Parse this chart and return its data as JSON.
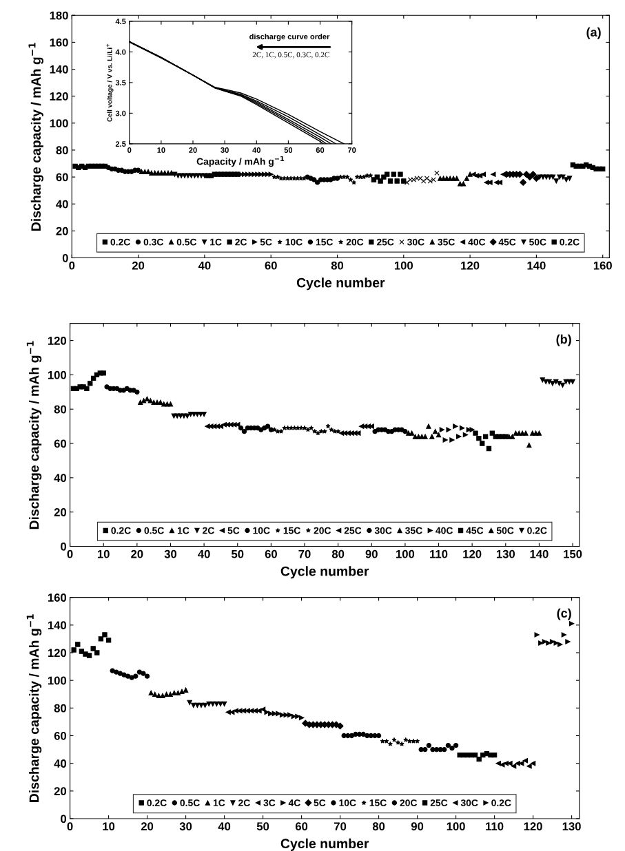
{
  "chart_data": [
    {
      "type": "scatter",
      "xlabel": "Cycle number",
      "ylabel": "Discharge capacity / mAh g$^{−1}$",
      "annotations": [
        "(a)"
      ],
      "xlim": [
        0,
        162
      ],
      "ylim": [
        0,
        180
      ],
      "xticks": [
        0,
        20,
        40,
        60,
        80,
        100,
        120,
        140,
        160
      ],
      "yticks": [
        0,
        20,
        40,
        60,
        80,
        100,
        120,
        140,
        160,
        180
      ],
      "legend": "bottom",
      "grid": false,
      "series": [
        {
          "name": "0.2C",
          "color": "#000000",
          "marker": "square",
          "x": [
            1,
            2,
            3,
            4,
            5,
            6,
            7,
            8,
            9,
            10
          ],
          "values": [
            68,
            67,
            68,
            67,
            68,
            68,
            68,
            68,
            68,
            68
          ]
        },
        {
          "name": "0.3C",
          "color": "#000000",
          "marker": "circle",
          "x": [
            11,
            12,
            13,
            14,
            15,
            16,
            17,
            18,
            19,
            20
          ],
          "values": [
            67,
            66,
            66,
            65,
            65,
            64,
            64,
            64,
            65,
            65
          ]
        },
        {
          "name": "0.5C",
          "color": "#000000",
          "marker": "triangle",
          "x": [
            21,
            22,
            23,
            24,
            25,
            26,
            27,
            28,
            29,
            30
          ],
          "values": [
            64,
            64,
            64,
            63,
            63,
            63,
            63,
            63,
            63,
            63
          ]
        },
        {
          "name": "1C",
          "color": "#000000",
          "marker": "triangle-down",
          "x": [
            31,
            32,
            33,
            34,
            35,
            36,
            37,
            38,
            39,
            40
          ],
          "values": [
            62,
            61,
            61,
            61,
            61,
            61,
            61,
            61,
            61,
            61
          ]
        },
        {
          "name": "2C",
          "color": "#000000",
          "marker": "square",
          "x": [
            41,
            42,
            43,
            44,
            45,
            46,
            47,
            48,
            49,
            50
          ],
          "values": [
            61,
            61,
            62,
            62,
            62,
            62,
            62,
            62,
            62,
            62
          ]
        },
        {
          "name": "5C",
          "color": "#000000",
          "marker": "triangle-right",
          "x": [
            51,
            52,
            53,
            54,
            55,
            56,
            57,
            58,
            59,
            60
          ],
          "values": [
            62,
            62,
            62,
            62,
            62,
            62,
            62,
            62,
            62,
            62
          ]
        },
        {
          "name": "10C",
          "color": "#000000",
          "marker": "star",
          "x": [
            61,
            62,
            63,
            64,
            65,
            66,
            67,
            68,
            69,
            70
          ],
          "values": [
            60,
            60,
            59,
            59,
            59,
            59,
            59,
            59,
            59,
            59
          ]
        },
        {
          "name": "15C",
          "color": "#000000",
          "marker": "circle",
          "x": [
            71,
            72,
            73,
            74,
            75,
            76,
            77,
            78,
            79,
            80
          ],
          "values": [
            60,
            59,
            58,
            56,
            58,
            58,
            58,
            58,
            59,
            59
          ]
        },
        {
          "name": "20C",
          "color": "#000000",
          "marker": "star",
          "x": [
            81,
            82,
            83,
            84,
            85,
            86,
            87,
            88,
            89,
            90
          ],
          "values": [
            60,
            60,
            60,
            58,
            56,
            60,
            60,
            60,
            61,
            61
          ]
        },
        {
          "name": "25C",
          "color": "#000000",
          "marker": "square",
          "x": [
            91,
            92,
            93,
            94,
            95,
            96,
            97,
            98,
            99,
            100
          ],
          "values": [
            58,
            60,
            57,
            60,
            62,
            57,
            62,
            57,
            62,
            57
          ]
        },
        {
          "name": "30C",
          "color": "#000000",
          "marker": "cross",
          "x": [
            101,
            102,
            103,
            104,
            105,
            106,
            107,
            108,
            109,
            110
          ],
          "values": [
            56,
            58,
            58,
            59,
            59,
            57,
            59,
            57,
            58,
            63
          ]
        },
        {
          "name": "35C",
          "color": "#000000",
          "marker": "triangle",
          "x": [
            111,
            112,
            113,
            114,
            115,
            116,
            117,
            118,
            119,
            120
          ],
          "values": [
            59,
            59,
            59,
            59,
            59,
            59,
            55,
            55,
            59,
            62
          ]
        },
        {
          "name": "40C",
          "color": "#000000",
          "marker": "triangle-left",
          "x": [
            121,
            122,
            123,
            124,
            125,
            126,
            127,
            128,
            129,
            130
          ],
          "values": [
            62,
            61,
            61,
            62,
            56,
            56,
            62,
            56,
            56,
            62
          ]
        },
        {
          "name": "45C",
          "color": "#000000",
          "marker": "diamond",
          "x": [
            131,
            132,
            133,
            134,
            135,
            136,
            137,
            138,
            139,
            140
          ],
          "values": [
            62,
            62,
            62,
            62,
            62,
            56,
            62,
            60,
            62,
            59
          ]
        },
        {
          "name": "50C",
          "color": "#000000",
          "marker": "triangle-down",
          "x": [
            141,
            142,
            143,
            144,
            145,
            146,
            147,
            148,
            149,
            150
          ],
          "values": [
            60,
            60,
            60,
            60,
            60,
            57,
            60,
            60,
            58,
            59
          ]
        },
        {
          "name": "0.2C",
          "color": "#000000",
          "marker": "square",
          "x": [
            151,
            152,
            153,
            154,
            155,
            156,
            157,
            158,
            159,
            160
          ],
          "values": [
            69,
            68,
            68,
            68,
            69,
            68,
            67,
            66,
            66,
            66
          ]
        }
      ]
    },
    {
      "type": "line",
      "xlabel": "Capacity / mAh g$^{−1}$",
      "ylabel": "Cell voltage / V vs. Li/Li$^{+}$",
      "annotations": [
        "discharge curve order",
        "2C, 1C, 0.5C, 0.3C, 0.2C"
      ],
      "xlim": [
        0,
        70
      ],
      "ylim": [
        2.5,
        4.5
      ],
      "xticks": [
        0,
        10,
        20,
        30,
        40,
        50,
        60,
        70
      ],
      "yticks": [
        2.5,
        {
          "value": 3.0,
          "label": "3.0"
        },
        3.5,
        {
          "value": 4.0,
          "label": "4.0"
        },
        4.5
      ],
      "grid": false,
      "series": [
        {
          "color": "#000000",
          "x": [
            0,
            10,
            20,
            27,
            30,
            35,
            40,
            50,
            60,
            61
          ],
          "values": [
            4.17,
            3.91,
            3.62,
            3.41,
            3.36,
            3.28,
            3.14,
            2.84,
            2.54,
            2.5
          ]
        },
        {
          "color": "#000000",
          "x": [
            0,
            10,
            20,
            27,
            30,
            35,
            40,
            50,
            60,
            62
          ],
          "values": [
            4.17,
            3.91,
            3.62,
            3.41,
            3.36,
            3.29,
            3.16,
            2.87,
            2.57,
            2.5
          ]
        },
        {
          "color": "#000000",
          "x": [
            0,
            10,
            20,
            27,
            30,
            35,
            40,
            50,
            60,
            63.5
          ],
          "values": [
            4.17,
            3.91,
            3.62,
            3.41,
            3.37,
            3.3,
            3.18,
            2.9,
            2.61,
            2.5
          ]
        },
        {
          "color": "#000000",
          "x": [
            0,
            10,
            20,
            27,
            30,
            35,
            40,
            50,
            60,
            65
          ],
          "values": [
            4.16,
            3.91,
            3.62,
            3.42,
            3.38,
            3.31,
            3.2,
            2.94,
            2.65,
            2.5
          ]
        },
        {
          "color": "#000000",
          "x": [
            0,
            10,
            20,
            27,
            30,
            35,
            40,
            50,
            60,
            67.5
          ],
          "values": [
            4.16,
            3.9,
            3.62,
            3.42,
            3.39,
            3.33,
            3.23,
            2.98,
            2.7,
            2.5
          ]
        }
      ]
    },
    {
      "type": "scatter",
      "xlabel": "Cycle number",
      "ylabel": "Discharge capacity / mAh g$^{−1}$",
      "annotations": [
        "(b)"
      ],
      "xlim": [
        0,
        152
      ],
      "ylim": [
        0,
        130
      ],
      "xticks": [
        0,
        10,
        20,
        30,
        40,
        50,
        60,
        70,
        80,
        90,
        100,
        110,
        120,
        130,
        140,
        150
      ],
      "yticks": [
        0,
        20,
        40,
        60,
        80,
        100,
        120
      ],
      "legend": "bottom",
      "grid": false,
      "series": [
        {
          "name": "0.2C",
          "color": "#000000",
          "marker": "square",
          "x": [
            1,
            2,
            3,
            4,
            5,
            6,
            7,
            8,
            9,
            10
          ],
          "values": [
            92,
            92,
            93,
            93,
            92,
            95,
            98,
            100,
            101,
            101
          ]
        },
        {
          "name": "0.5C",
          "color": "#000000",
          "marker": "circle",
          "x": [
            11,
            12,
            13,
            14,
            15,
            16,
            17,
            18,
            19,
            20
          ],
          "values": [
            93,
            92,
            92,
            92,
            91,
            91,
            92,
            91,
            91,
            90
          ]
        },
        {
          "name": "1C",
          "color": "#000000",
          "marker": "triangle",
          "x": [
            21,
            22,
            23,
            24,
            25,
            26,
            27,
            28,
            29,
            30
          ],
          "values": [
            84,
            85,
            86,
            85,
            84,
            84,
            84,
            83,
            83,
            83
          ]
        },
        {
          "name": "2C",
          "color": "#000000",
          "marker": "triangle-down",
          "x": [
            31,
            32,
            33,
            34,
            35,
            36,
            37,
            38,
            39,
            40
          ],
          "values": [
            76,
            76,
            76,
            76,
            76,
            77,
            77,
            77,
            77,
            77
          ]
        },
        {
          "name": "5C",
          "color": "#000000",
          "marker": "triangle-left",
          "x": [
            41,
            42,
            43,
            44,
            45,
            46,
            47,
            48,
            49,
            50
          ],
          "values": [
            70,
            70,
            70,
            70,
            70,
            71,
            71,
            71,
            71,
            71
          ]
        },
        {
          "name": "10C",
          "color": "#000000",
          "marker": "circle",
          "x": [
            51,
            52,
            53,
            54,
            55,
            56,
            57,
            58,
            59,
            60
          ],
          "values": [
            69,
            67,
            69,
            69,
            69,
            69,
            68,
            69,
            70,
            68
          ]
        },
        {
          "name": "15C",
          "color": "#000000",
          "marker": "star",
          "x": [
            61,
            62,
            63,
            64,
            65,
            66,
            67,
            68,
            69,
            70
          ],
          "values": [
            68,
            67,
            67,
            69,
            69,
            69,
            69,
            69,
            69,
            69
          ]
        },
        {
          "name": "20C",
          "color": "#000000",
          "marker": "star",
          "x": [
            71,
            72,
            73,
            74,
            75,
            76,
            77,
            78,
            79,
            80
          ],
          "values": [
            68,
            69,
            67,
            66,
            67,
            67,
            70,
            68,
            67,
            67
          ]
        },
        {
          "name": "25C",
          "color": "#000000",
          "marker": "triangle-left",
          "x": [
            81,
            82,
            83,
            84,
            85,
            86,
            87,
            88,
            89,
            90
          ],
          "values": [
            66,
            66,
            66,
            66,
            66,
            66,
            70,
            70,
            70,
            70
          ]
        },
        {
          "name": "30C",
          "color": "#000000",
          "marker": "circle",
          "x": [
            91,
            92,
            93,
            94,
            95,
            96,
            97,
            98,
            99,
            100
          ],
          "values": [
            67,
            68,
            68,
            68,
            67,
            67,
            68,
            68,
            68,
            67
          ]
        },
        {
          "name": "35C",
          "color": "#000000",
          "marker": "triangle",
          "x": [
            101,
            102,
            103,
            104,
            105,
            106,
            107,
            108,
            109,
            110
          ],
          "values": [
            66,
            66,
            64,
            64,
            64,
            64,
            70,
            64,
            67,
            65
          ]
        },
        {
          "name": "40C",
          "color": "#000000",
          "marker": "triangle-right",
          "x": [
            111,
            112,
            113,
            114,
            115,
            116,
            117,
            118,
            119,
            120
          ],
          "values": [
            68,
            62,
            68,
            62,
            70,
            64,
            69,
            65,
            68,
            68
          ]
        },
        {
          "name": "45C",
          "color": "#000000",
          "marker": "square",
          "x": [
            121,
            122,
            123,
            124,
            125,
            126,
            127,
            128,
            129,
            130
          ],
          "values": [
            66,
            63,
            60,
            64,
            57,
            66,
            64,
            64,
            64,
            64
          ]
        },
        {
          "name": "50C",
          "color": "#000000",
          "marker": "triangle",
          "x": [
            131,
            132,
            133,
            134,
            135,
            136,
            137,
            138,
            139,
            140
          ],
          "values": [
            64,
            64,
            66,
            66,
            66,
            66,
            59,
            66,
            66,
            66
          ]
        },
        {
          "name": "0.2C",
          "color": "#000000",
          "marker": "triangle-down",
          "x": [
            141,
            142,
            143,
            144,
            145,
            146,
            147,
            148,
            149,
            150
          ],
          "values": [
            97,
            96,
            96,
            95,
            96,
            95,
            94,
            96,
            96,
            96
          ]
        }
      ]
    },
    {
      "type": "scatter",
      "xlabel": "Cycle number",
      "ylabel": "Discharge capacity / mAh g$^{−1}$",
      "annotations": [
        "(c)"
      ],
      "xlim": [
        0,
        132
      ],
      "ylim": [
        0,
        160
      ],
      "xticks": [
        0,
        10,
        20,
        30,
        40,
        50,
        60,
        70,
        80,
        90,
        100,
        110,
        120,
        130
      ],
      "yticks": [
        0,
        20,
        40,
        60,
        80,
        100,
        120,
        140,
        160
      ],
      "legend": "bottom",
      "grid": false,
      "series": [
        {
          "name": "0.2C",
          "color": "#000000",
          "marker": "square",
          "x": [
            1,
            2,
            3,
            4,
            5,
            6,
            7,
            8,
            9,
            10
          ],
          "values": [
            122,
            126,
            121,
            119,
            118,
            123,
            120,
            130,
            133,
            129
          ]
        },
        {
          "name": "0.5C",
          "color": "#000000",
          "marker": "circle",
          "x": [
            11,
            12,
            13,
            14,
            15,
            16,
            17,
            18,
            19,
            20
          ],
          "values": [
            107,
            106,
            105,
            104,
            103,
            102,
            103,
            106,
            105,
            103
          ]
        },
        {
          "name": "1C",
          "color": "#000000",
          "marker": "triangle",
          "x": [
            21,
            22,
            23,
            24,
            25,
            26,
            27,
            28,
            29,
            30
          ],
          "values": [
            91,
            90,
            89,
            89,
            90,
            90,
            91,
            91,
            92,
            93
          ]
        },
        {
          "name": "2C",
          "color": "#000000",
          "marker": "triangle-down",
          "x": [
            31,
            32,
            33,
            34,
            35,
            36,
            37,
            38,
            39,
            40
          ],
          "values": [
            84,
            82,
            82,
            82,
            82,
            83,
            83,
            83,
            83,
            83
          ]
        },
        {
          "name": "3C",
          "color": "#000000",
          "marker": "triangle-left",
          "x": [
            41,
            42,
            43,
            44,
            45,
            46,
            47,
            48,
            49,
            50
          ],
          "values": [
            77,
            77,
            78,
            78,
            78,
            78,
            78,
            78,
            78,
            79
          ]
        },
        {
          "name": "4C",
          "color": "#000000",
          "marker": "triangle-right",
          "x": [
            51,
            52,
            53,
            54,
            55,
            56,
            57,
            58,
            59,
            60
          ],
          "values": [
            77,
            76,
            76,
            76,
            75,
            75,
            75,
            74,
            74,
            73
          ]
        },
        {
          "name": "5C",
          "color": "#000000",
          "marker": "diamond",
          "x": [
            61,
            62,
            63,
            64,
            65,
            66,
            67,
            68,
            69,
            70
          ],
          "values": [
            69,
            68,
            68,
            68,
            68,
            68,
            68,
            68,
            68,
            67
          ]
        },
        {
          "name": "10C",
          "color": "#000000",
          "marker": "circle",
          "x": [
            71,
            72,
            73,
            74,
            75,
            76,
            77,
            78,
            79,
            80
          ],
          "values": [
            60,
            60,
            60,
            61,
            61,
            61,
            60,
            60,
            60,
            60
          ]
        },
        {
          "name": "15C",
          "color": "#000000",
          "marker": "star",
          "x": [
            81,
            82,
            83,
            84,
            85,
            86,
            87,
            88,
            89,
            90
          ],
          "values": [
            56,
            56,
            54,
            57,
            55,
            54,
            57,
            56,
            56,
            56
          ]
        },
        {
          "name": "20C",
          "color": "#000000",
          "marker": "circle",
          "x": [
            91,
            92,
            93,
            94,
            95,
            96,
            97,
            98,
            99,
            100
          ],
          "values": [
            50,
            50,
            53,
            50,
            50,
            50,
            50,
            53,
            51,
            53
          ]
        },
        {
          "name": "25C",
          "color": "#000000",
          "marker": "square",
          "x": [
            101,
            102,
            103,
            104,
            105,
            106,
            107,
            108,
            109,
            110
          ],
          "values": [
            46,
            46,
            46,
            46,
            46,
            43,
            46,
            47,
            46,
            46
          ]
        },
        {
          "name": "30C",
          "color": "#000000",
          "marker": "triangle-left",
          "x": [
            111,
            112,
            113,
            114,
            115,
            116,
            117,
            118,
            119,
            120
          ],
          "values": [
            40,
            39,
            40,
            40,
            38,
            40,
            40,
            42,
            38,
            40
          ]
        },
        {
          "name": "0.2C",
          "color": "#000000",
          "marker": "triangle-right",
          "x": [
            121,
            122,
            123,
            124,
            125,
            126,
            127,
            128,
            129,
            130
          ],
          "values": [
            133,
            127,
            128,
            127,
            128,
            127,
            126,
            133,
            128,
            141
          ]
        }
      ]
    }
  ]
}
